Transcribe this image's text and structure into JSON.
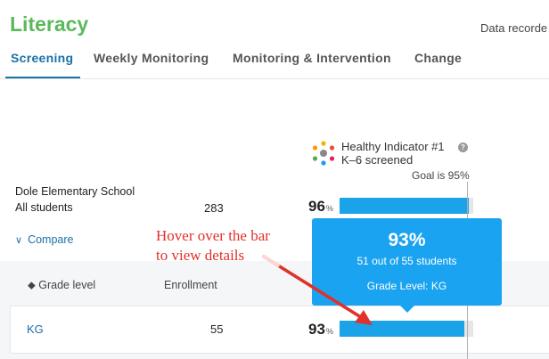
{
  "app": {
    "title": "Literacy",
    "data_recorded": "Data recorde"
  },
  "tabs": [
    {
      "label": "Screening",
      "active": true
    },
    {
      "label": "Weekly Monitoring",
      "active": false
    },
    {
      "label": "Monitoring & Intervention",
      "active": false
    },
    {
      "label": "Change",
      "active": false
    }
  ],
  "indicator": {
    "icon": "healthy-indicator-logo-icon",
    "title": "Healthy Indicator #1",
    "subtitle": "K–6 screened",
    "help_icon": "question-icon",
    "goal_label": "Goal is 95%",
    "goal_value": 95
  },
  "school": {
    "name": "Dole Elementary School",
    "group_label": "All students",
    "enrollment": "283",
    "percent": "96",
    "percent_value": 96,
    "percent_symbol": "%"
  },
  "compare": {
    "label": "Compare",
    "icon": "chevron-down-icon"
  },
  "table": {
    "headers": {
      "grade": "Grade level",
      "enrollment": "Enrollment"
    },
    "sort_icon": "sort-icon",
    "rows": [
      {
        "grade": "KG",
        "enrollment": "55",
        "percent": "93",
        "percent_value": 93,
        "percent_symbol": "%"
      }
    ]
  },
  "tooltip": {
    "percent": "93%",
    "detail": "51 out of 55 students",
    "grade": "Grade Level: KG"
  },
  "annotation": {
    "text": "Hover over the bar\nto view details",
    "color": "#e0312a"
  },
  "colors": {
    "accent": "#1b6fa8",
    "bar": "#1aa3e8",
    "title": "#5cb85c",
    "tooltip": "#1aa3f0"
  }
}
